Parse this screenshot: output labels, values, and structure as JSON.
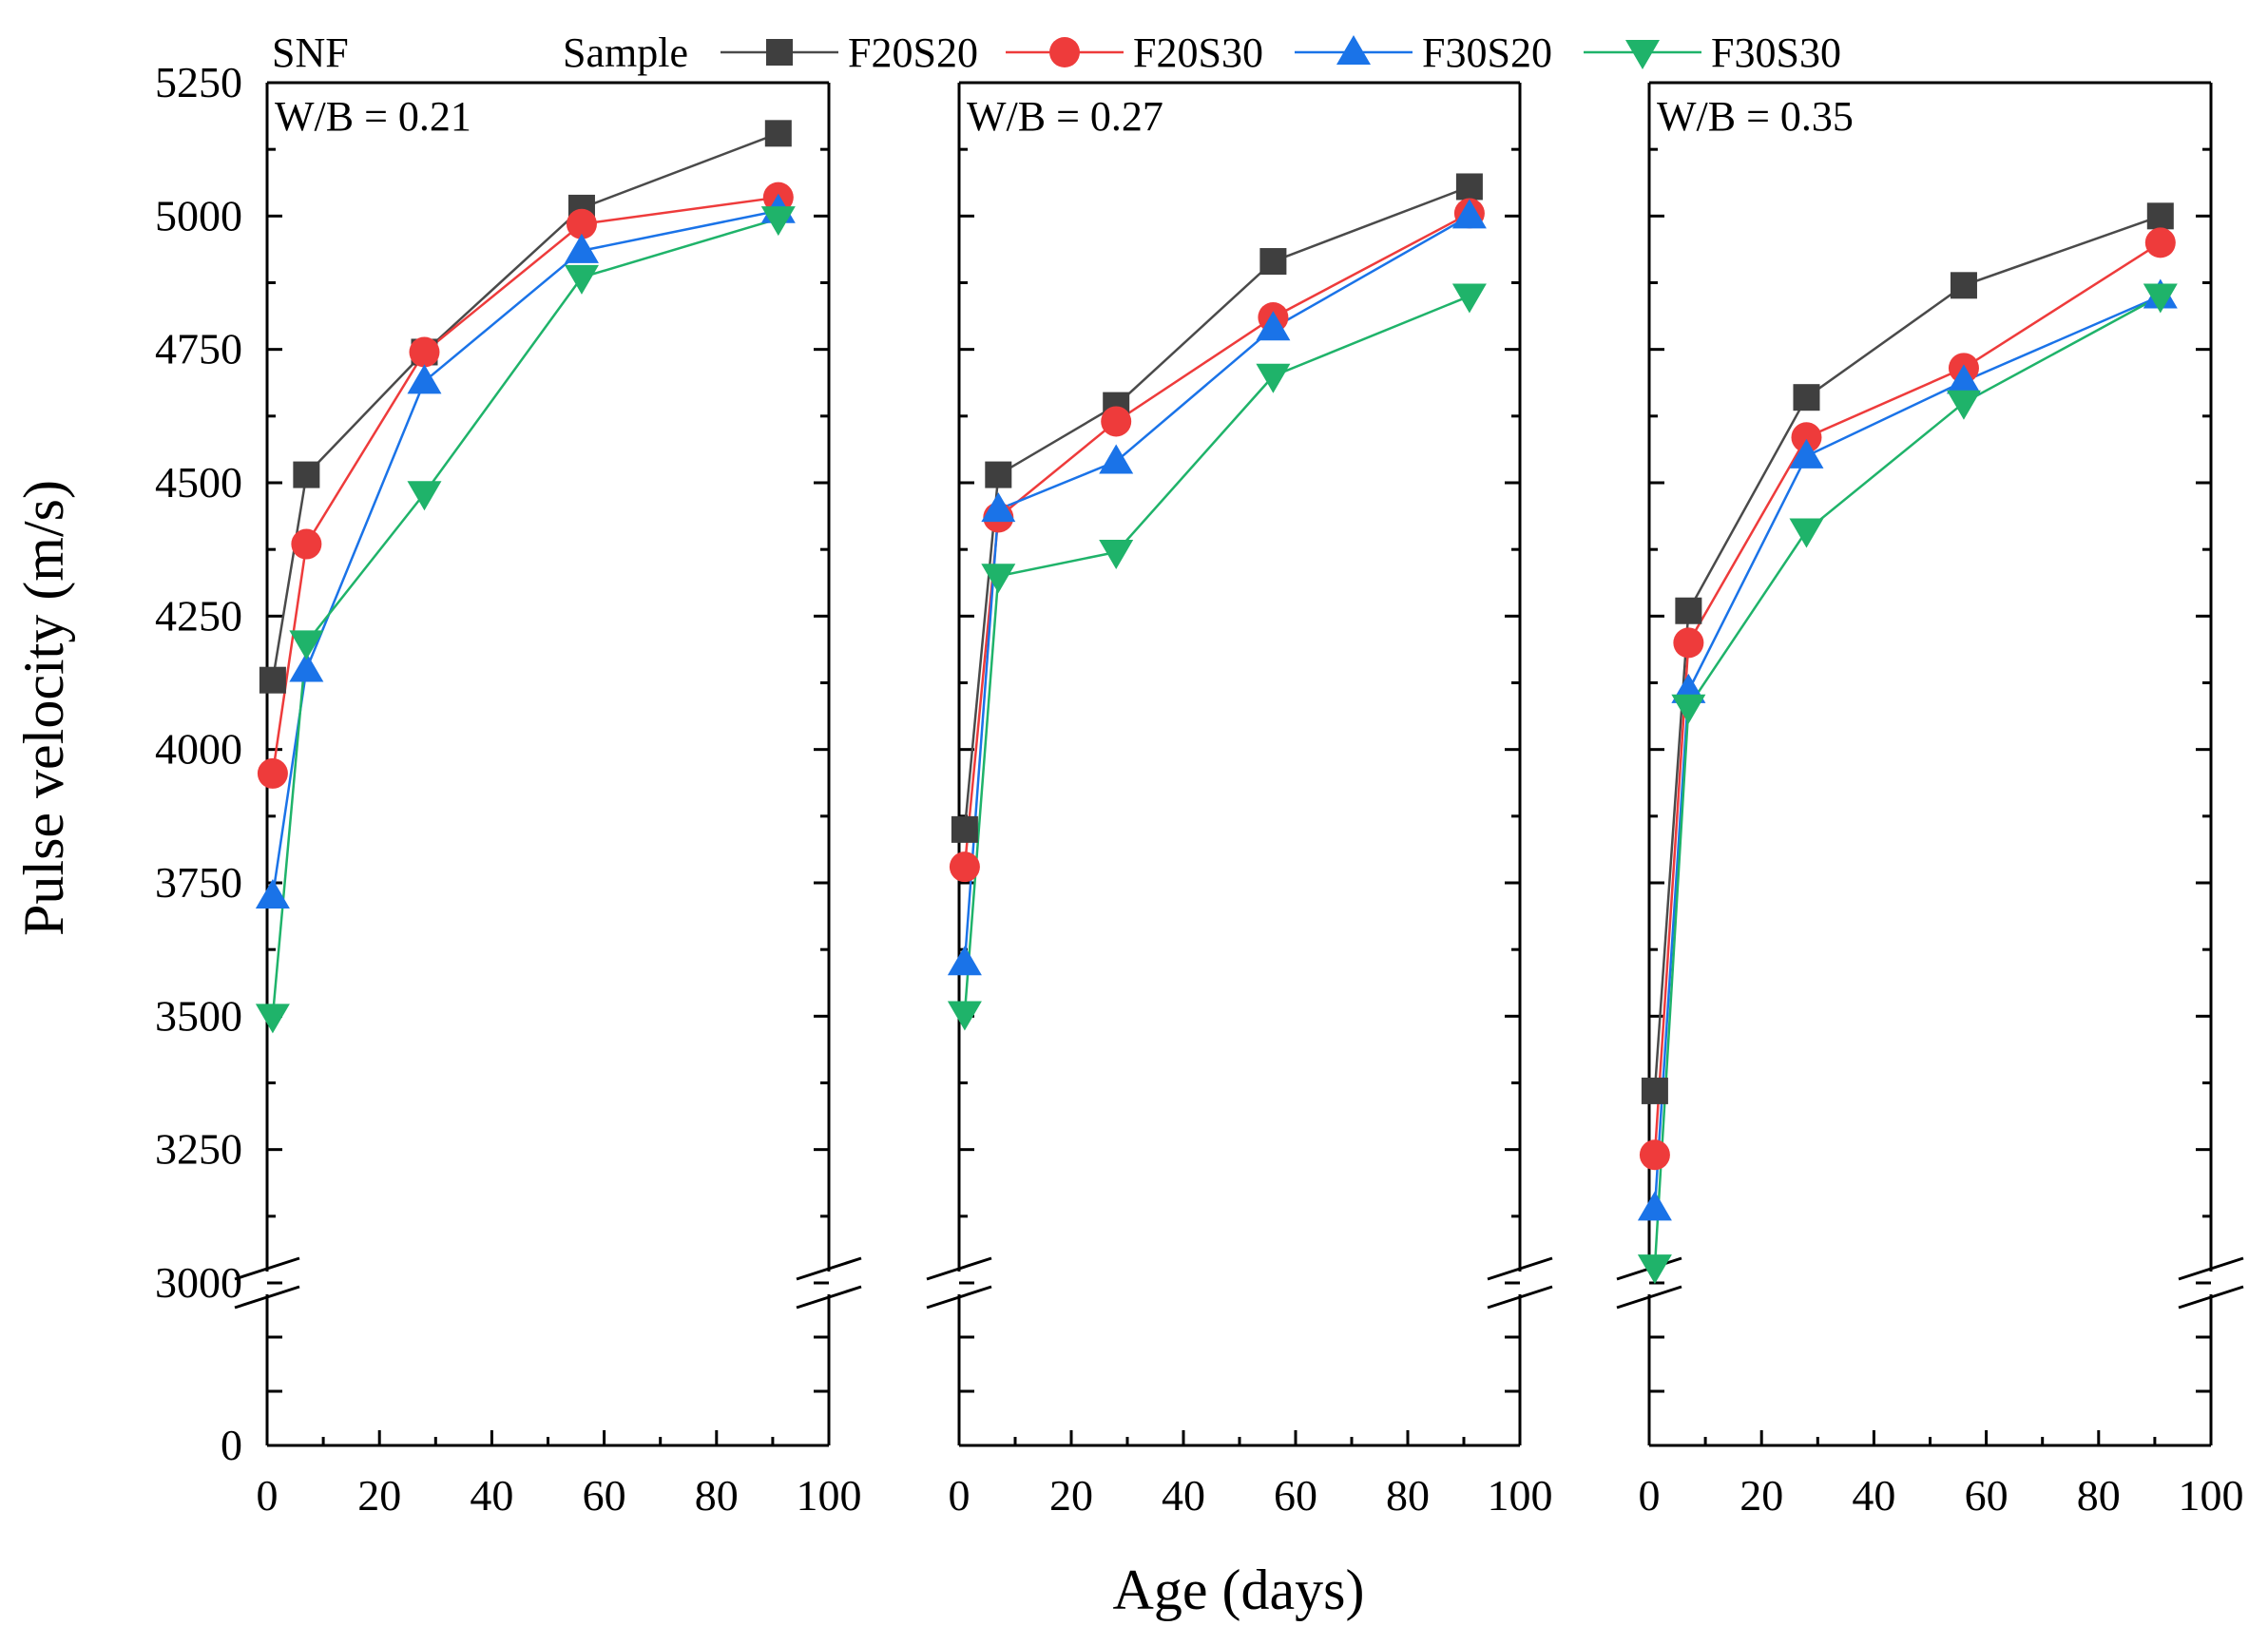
{
  "chart_data": {
    "type": "line",
    "figure_label": "SNF",
    "ylabel": "Pulse velocity (m/s)",
    "xlabel": "Age (days)",
    "legend": {
      "title": "Sample",
      "placement": "top",
      "entries": [
        "F20S20",
        "F20S30",
        "F30S20",
        "F30S30"
      ]
    },
    "series_styles": [
      {
        "name": "F20S20",
        "marker": "square",
        "color": "#3f3f3f",
        "line_color": "#4a4a4a"
      },
      {
        "name": "F20S30",
        "marker": "circle",
        "color": "#ee3b3b",
        "line_color": "#ee3b3b"
      },
      {
        "name": "F30S20",
        "marker": "triangle-up",
        "color": "#1a73e8",
        "line_color": "#1a73e8"
      },
      {
        "name": "F30S30",
        "marker": "triangle-down",
        "color": "#1fb36a",
        "line_color": "#1fb36a"
      }
    ],
    "x_ticks": [
      0,
      20,
      40,
      60,
      80,
      100
    ],
    "xlim": [
      0,
      100
    ],
    "y_ticks": [
      0,
      3000,
      3250,
      3500,
      3750,
      4000,
      4250,
      4500,
      4750,
      5000,
      5250
    ],
    "y_break": [
      0,
      3000
    ],
    "ylim": [
      0,
      5250
    ],
    "panels": [
      {
        "label": "W/B = 0.21",
        "x": [
          1,
          7,
          28,
          56,
          91
        ],
        "series": [
          {
            "name": "F20S20",
            "values": [
              4130,
              4515,
              4745,
              5015,
              5155
            ]
          },
          {
            "name": "F20S30",
            "values": [
              3955,
              4385,
              4745,
              4985,
              5035
            ]
          },
          {
            "name": "F30S20",
            "values": [
              3725,
              4150,
              4690,
              4935,
              5010
            ]
          },
          {
            "name": "F30S30",
            "values": [
              3500,
              4200,
              4480,
              4885,
              4995
            ]
          }
        ]
      },
      {
        "label": "W/B = 0.27",
        "x": [
          1,
          7,
          28,
          56,
          91
        ],
        "series": [
          {
            "name": "F20S20",
            "values": [
              3850,
              4515,
              4645,
              4915,
              5055
            ]
          },
          {
            "name": "F20S30",
            "values": [
              3780,
              4435,
              4615,
              4810,
              5005
            ]
          },
          {
            "name": "F30S20",
            "values": [
              3600,
              4450,
              4540,
              4790,
              5000
            ]
          },
          {
            "name": "F30S30",
            "values": [
              3505,
              4325,
              4370,
              4700,
              4850
            ]
          }
        ]
      },
      {
        "label": "W/B = 0.35",
        "x": [
          1,
          7,
          28,
          56,
          91
        ],
        "series": [
          {
            "name": "F20S20",
            "values": [
              3360,
              4260,
              4660,
              4870,
              5000
            ]
          },
          {
            "name": "F20S30",
            "values": [
              3240,
              4200,
              4585,
              4715,
              4950
            ]
          },
          {
            "name": "F30S20",
            "values": [
              3140,
              4110,
              4550,
              4690,
              4850
            ]
          },
          {
            "name": "F30S30",
            "values": [
              3030,
              4080,
              4410,
              4650,
              4850
            ]
          }
        ]
      }
    ]
  }
}
